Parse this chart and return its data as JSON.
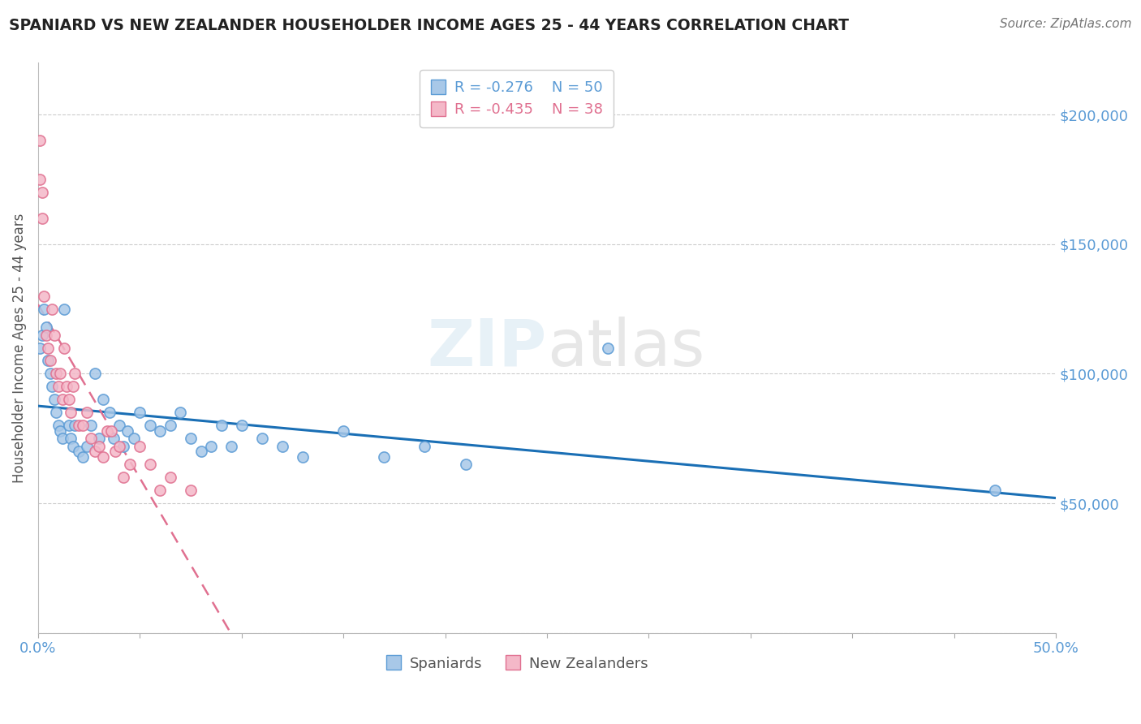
{
  "title": "SPANIARD VS NEW ZEALANDER HOUSEHOLDER INCOME AGES 25 - 44 YEARS CORRELATION CHART",
  "source": "Source: ZipAtlas.com",
  "ylabel": "Householder Income Ages 25 - 44 years",
  "watermark": "ZIPatlas",
  "spaniards": {
    "label": "Spaniards",
    "color": "#a8c8e8",
    "border_color": "#5b9bd5",
    "R": -0.276,
    "N": 50,
    "x": [
      0.001,
      0.002,
      0.003,
      0.004,
      0.005,
      0.006,
      0.007,
      0.008,
      0.009,
      0.01,
      0.011,
      0.012,
      0.013,
      0.015,
      0.016,
      0.017,
      0.018,
      0.02,
      0.022,
      0.024,
      0.026,
      0.028,
      0.03,
      0.032,
      0.035,
      0.037,
      0.04,
      0.042,
      0.044,
      0.047,
      0.05,
      0.055,
      0.06,
      0.065,
      0.07,
      0.075,
      0.08,
      0.085,
      0.09,
      0.095,
      0.1,
      0.11,
      0.12,
      0.13,
      0.15,
      0.17,
      0.19,
      0.21,
      0.28,
      0.47
    ],
    "y": [
      110000,
      115000,
      125000,
      118000,
      105000,
      100000,
      95000,
      90000,
      85000,
      80000,
      78000,
      75000,
      125000,
      80000,
      75000,
      72000,
      80000,
      70000,
      68000,
      72000,
      80000,
      100000,
      75000,
      90000,
      85000,
      75000,
      80000,
      72000,
      78000,
      75000,
      85000,
      80000,
      78000,
      80000,
      85000,
      75000,
      70000,
      72000,
      80000,
      72000,
      80000,
      75000,
      72000,
      68000,
      78000,
      68000,
      72000,
      65000,
      110000,
      55000
    ]
  },
  "new_zealanders": {
    "label": "New Zealanders",
    "color": "#f4b8c8",
    "border_color": "#e07090",
    "R": -0.435,
    "N": 38,
    "x": [
      0.001,
      0.001,
      0.002,
      0.002,
      0.003,
      0.004,
      0.005,
      0.006,
      0.007,
      0.008,
      0.009,
      0.01,
      0.011,
      0.012,
      0.013,
      0.014,
      0.015,
      0.016,
      0.017,
      0.018,
      0.02,
      0.022,
      0.024,
      0.026,
      0.028,
      0.03,
      0.032,
      0.034,
      0.036,
      0.038,
      0.04,
      0.042,
      0.045,
      0.05,
      0.055,
      0.06,
      0.065,
      0.075
    ],
    "y": [
      190000,
      175000,
      170000,
      160000,
      130000,
      115000,
      110000,
      105000,
      125000,
      115000,
      100000,
      95000,
      100000,
      90000,
      110000,
      95000,
      90000,
      85000,
      95000,
      100000,
      80000,
      80000,
      85000,
      75000,
      70000,
      72000,
      68000,
      78000,
      78000,
      70000,
      72000,
      60000,
      65000,
      72000,
      65000,
      55000,
      60000,
      55000
    ]
  },
  "xlim": [
    0.0,
    0.5
  ],
  "ylim": [
    0,
    220000
  ],
  "yticks": [
    0,
    50000,
    100000,
    150000,
    200000
  ],
  "ytick_labels": [
    "",
    "$50,000",
    "$100,000",
    "$150,000",
    "$200,000"
  ],
  "background_color": "#ffffff",
  "grid_color": "#cccccc",
  "title_color": "#222222",
  "axis_label_color": "#5b9bd5",
  "legend_r_color_spaniards": "#5b9bd5",
  "legend_r_color_nz": "#e07090"
}
